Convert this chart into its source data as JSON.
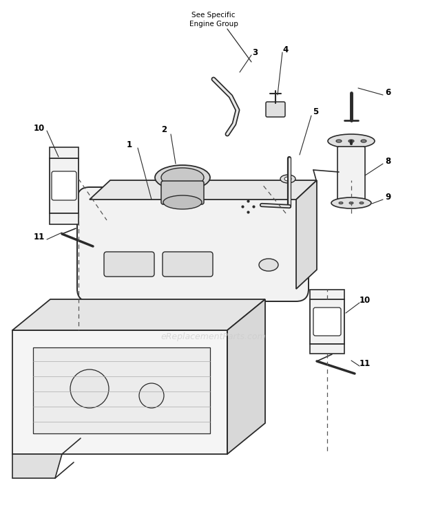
{
  "bg_color": "#ffffff",
  "lc": "#2a2a2a",
  "dc": "#555555",
  "fc_light": "#f2f2f2",
  "fc_med": "#e0e0e0",
  "watermark": "eReplacementParts.com",
  "wm_color": "#cccccc",
  "figsize": [
    6.2,
    7.34
  ],
  "dpi": 100
}
